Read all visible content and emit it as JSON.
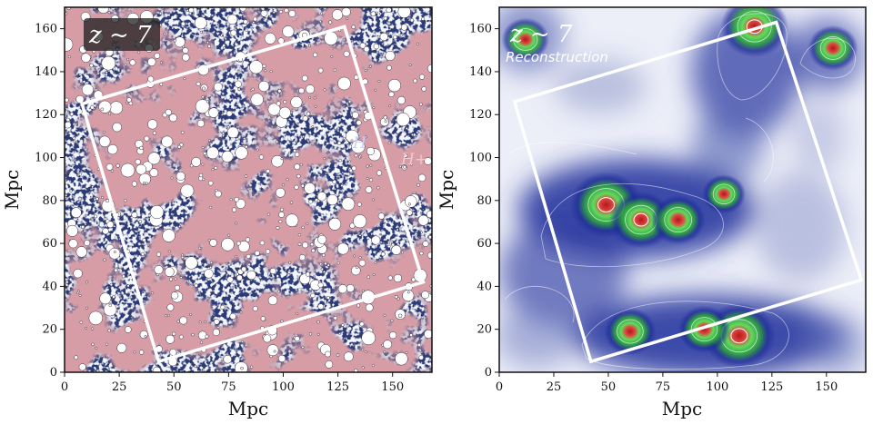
{
  "chart_data": [
    {
      "type": "heatmap",
      "panel": "left",
      "label": "z ~ 7",
      "region_labels": [
        "H",
        "H+"
      ],
      "xlabel": "Mpc",
      "ylabel": "Mpc",
      "xlim": [
        0,
        168
      ],
      "ylim": [
        0,
        170
      ],
      "xticks": [
        0,
        25,
        50,
        75,
        100,
        125,
        150
      ],
      "yticks": [
        0,
        20,
        40,
        60,
        80,
        100,
        120,
        140,
        160
      ],
      "survey_box": [
        [
          8,
          125
        ],
        [
          128,
          161
        ],
        [
          164,
          42
        ],
        [
          43,
          5
        ]
      ]
    },
    {
      "type": "heatmap",
      "panel": "right",
      "label": "z ~ 7",
      "sublabel": "Reconstruction",
      "xlabel": "Mpc",
      "ylabel": "Mpc",
      "xlim": [
        0,
        168
      ],
      "ylim": [
        0,
        170
      ],
      "xticks": [
        0,
        25,
        50,
        75,
        100,
        125,
        150
      ],
      "yticks": [
        0,
        20,
        40,
        60,
        80,
        100,
        120,
        140,
        160
      ],
      "survey_box": [
        [
          7,
          126
        ],
        [
          127,
          163
        ],
        [
          166,
          43
        ],
        [
          42,
          5
        ]
      ],
      "peaks": [
        {
          "x": 49,
          "y": 78,
          "amp": 1.0
        },
        {
          "x": 65,
          "y": 71,
          "amp": 0.8
        },
        {
          "x": 82,
          "y": 71,
          "amp": 0.6
        },
        {
          "x": 110,
          "y": 17,
          "amp": 1.0
        },
        {
          "x": 94,
          "y": 20,
          "amp": 0.55
        },
        {
          "x": 60,
          "y": 19,
          "amp": 0.55
        },
        {
          "x": 117,
          "y": 161,
          "amp": 0.9
        },
        {
          "x": 153,
          "y": 151,
          "amp": 0.5
        },
        {
          "x": 12,
          "y": 155,
          "amp": 0.45
        },
        {
          "x": 103,
          "y": 83,
          "amp": 0.35
        }
      ]
    }
  ],
  "colors": {
    "ionized": "#d79da6",
    "neutral": "#2c3c78",
    "recon_low": "#f2f2fa",
    "recon_mid": "#1c2c9a",
    "recon_high": "#50d25a",
    "recon_peak": "#d02828"
  }
}
